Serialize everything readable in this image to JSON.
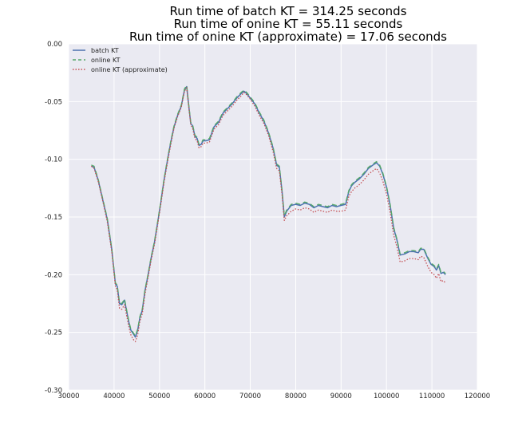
{
  "chart_data": {
    "type": "line",
    "title_lines": [
      "Run time of batch KT = 314.25 seconds",
      "Run time of onine KT = 55.11 seconds",
      "Run time of onine KT (approximate) = 17.06 seconds"
    ],
    "xlabel": "",
    "ylabel": "",
    "xlim": [
      30000,
      120000
    ],
    "ylim": [
      -0.3,
      0.0
    ],
    "x_ticks": [
      30000,
      40000,
      50000,
      60000,
      70000,
      80000,
      90000,
      100000,
      110000,
      120000
    ],
    "x_tick_labels": [
      "30000",
      "40000",
      "50000",
      "60000",
      "70000",
      "80000",
      "90000",
      "100000",
      "110000",
      "120000"
    ],
    "y_ticks": [
      0.0,
      -0.05,
      -0.1,
      -0.15,
      -0.2,
      -0.25,
      -0.3
    ],
    "y_tick_labels": [
      "0.00",
      "-0.05",
      "-0.10",
      "-0.15",
      "-0.20",
      "-0.25",
      "-0.30"
    ],
    "grid": true,
    "legend_position": "top-left",
    "background": "#eaeaf2",
    "series": [
      {
        "name": "batch KT",
        "style": "solid",
        "color": "#4c72b0",
        "x": [
          35000,
          35600,
          36500,
          37500,
          38500,
          39500,
          40300,
          40700,
          41200,
          41700,
          42300,
          42800,
          43300,
          43700,
          44200,
          44700,
          45200,
          45700,
          46200,
          46800,
          47500,
          48200,
          48900,
          49600,
          50300,
          51000,
          51800,
          52500,
          53200,
          54000,
          54800,
          55500,
          56000,
          56400,
          56900,
          57300,
          57800,
          58300,
          58700,
          59200,
          59600,
          60200,
          61000,
          62000,
          63000,
          64000,
          65000,
          66000,
          67000,
          68000,
          68600,
          69200,
          70000,
          71000,
          72000,
          73000,
          74000,
          75000,
          75800,
          76400,
          77000,
          77500,
          78000,
          79000,
          80000,
          81000,
          82000,
          83000,
          84000,
          85000,
          86000,
          87000,
          88000,
          89000,
          90000,
          91000,
          91700,
          92300,
          93000,
          94000,
          95000,
          96000,
          97000,
          97800,
          98500,
          99200,
          100000,
          100800,
          101600,
          102300,
          103000,
          104000,
          105000,
          106000,
          107000,
          107500,
          108200,
          109000,
          109800,
          110500,
          111000,
          111500,
          112000,
          112500,
          113000
        ],
        "y": [
          -0.106,
          -0.107,
          -0.118,
          -0.135,
          -0.152,
          -0.178,
          -0.208,
          -0.21,
          -0.225,
          -0.226,
          -0.222,
          -0.232,
          -0.242,
          -0.248,
          -0.251,
          -0.254,
          -0.248,
          -0.237,
          -0.231,
          -0.214,
          -0.2,
          -0.185,
          -0.172,
          -0.155,
          -0.137,
          -0.118,
          -0.1,
          -0.085,
          -0.072,
          -0.062,
          -0.054,
          -0.04,
          -0.037,
          -0.052,
          -0.069,
          -0.071,
          -0.08,
          -0.082,
          -0.088,
          -0.087,
          -0.084,
          -0.084,
          -0.083,
          -0.072,
          -0.068,
          -0.06,
          -0.056,
          -0.052,
          -0.047,
          -0.043,
          -0.041,
          -0.043,
          -0.047,
          -0.052,
          -0.06,
          -0.067,
          -0.077,
          -0.09,
          -0.105,
          -0.107,
          -0.128,
          -0.15,
          -0.145,
          -0.14,
          -0.139,
          -0.14,
          -0.138,
          -0.139,
          -0.142,
          -0.14,
          -0.141,
          -0.142,
          -0.14,
          -0.141,
          -0.14,
          -0.139,
          -0.128,
          -0.123,
          -0.12,
          -0.117,
          -0.113,
          -0.108,
          -0.105,
          -0.103,
          -0.106,
          -0.113,
          -0.124,
          -0.14,
          -0.16,
          -0.17,
          -0.183,
          -0.182,
          -0.18,
          -0.18,
          -0.181,
          -0.178,
          -0.178,
          -0.185,
          -0.191,
          -0.193,
          -0.196,
          -0.192,
          -0.199,
          -0.198,
          -0.2
        ]
      },
      {
        "name": "online KT",
        "style": "dashed",
        "color": "#55a868",
        "x": [
          35000,
          35600,
          36500,
          37500,
          38500,
          39500,
          40300,
          40700,
          41200,
          41700,
          42300,
          42800,
          43300,
          43700,
          44200,
          44700,
          45200,
          45700,
          46200,
          46800,
          47500,
          48200,
          48900,
          49600,
          50300,
          51000,
          51800,
          52500,
          53200,
          54000,
          54800,
          55500,
          56000,
          56400,
          56900,
          57300,
          57800,
          58300,
          58700,
          59200,
          59600,
          60200,
          61000,
          62000,
          63000,
          64000,
          65000,
          66000,
          67000,
          68000,
          68600,
          69200,
          70000,
          71000,
          72000,
          73000,
          74000,
          75000,
          75800,
          76400,
          77000,
          77500,
          78000,
          79000,
          80000,
          81000,
          82000,
          83000,
          84000,
          85000,
          86000,
          87000,
          88000,
          89000,
          90000,
          91000,
          91700,
          92300,
          93000,
          94000,
          95000,
          96000,
          97000,
          97800,
          98500,
          99200,
          100000,
          100800,
          101600,
          102300,
          103000,
          104000,
          105000,
          106000,
          107000,
          107500,
          108200,
          109000,
          109800,
          110500,
          111000,
          111500,
          112000,
          112500,
          113000
        ],
        "y": [
          -0.105,
          -0.106,
          -0.117,
          -0.134,
          -0.151,
          -0.177,
          -0.207,
          -0.209,
          -0.224,
          -0.225,
          -0.221,
          -0.231,
          -0.241,
          -0.247,
          -0.25,
          -0.253,
          -0.247,
          -0.236,
          -0.23,
          -0.213,
          -0.199,
          -0.184,
          -0.171,
          -0.154,
          -0.136,
          -0.117,
          -0.099,
          -0.084,
          -0.071,
          -0.061,
          -0.053,
          -0.039,
          -0.036,
          -0.051,
          -0.068,
          -0.07,
          -0.079,
          -0.081,
          -0.087,
          -0.086,
          -0.083,
          -0.083,
          -0.082,
          -0.071,
          -0.067,
          -0.059,
          -0.055,
          -0.051,
          -0.046,
          -0.042,
          -0.04,
          -0.042,
          -0.046,
          -0.051,
          -0.059,
          -0.066,
          -0.076,
          -0.089,
          -0.104,
          -0.106,
          -0.127,
          -0.149,
          -0.144,
          -0.139,
          -0.138,
          -0.139,
          -0.137,
          -0.138,
          -0.141,
          -0.139,
          -0.14,
          -0.141,
          -0.139,
          -0.14,
          -0.139,
          -0.138,
          -0.127,
          -0.122,
          -0.119,
          -0.116,
          -0.112,
          -0.107,
          -0.104,
          -0.102,
          -0.105,
          -0.112,
          -0.123,
          -0.139,
          -0.159,
          -0.169,
          -0.182,
          -0.181,
          -0.179,
          -0.179,
          -0.18,
          -0.177,
          -0.177,
          -0.184,
          -0.19,
          -0.192,
          -0.195,
          -0.191,
          -0.198,
          -0.197,
          -0.199
        ]
      },
      {
        "name": "online KT (approximate)",
        "style": "dotted",
        "color": "#c44e52",
        "x": [
          35000,
          35600,
          36500,
          37500,
          38500,
          39500,
          40300,
          40700,
          41200,
          41700,
          42300,
          42800,
          43300,
          43700,
          44200,
          44700,
          45200,
          45700,
          46200,
          46800,
          47500,
          48200,
          48900,
          49600,
          50300,
          51000,
          51800,
          52500,
          53200,
          54000,
          54800,
          55500,
          56000,
          56400,
          56900,
          57300,
          57800,
          58300,
          58700,
          59200,
          59600,
          60200,
          61000,
          62000,
          63000,
          64000,
          65000,
          66000,
          67000,
          68000,
          68600,
          69200,
          70000,
          71000,
          72000,
          73000,
          74000,
          75000,
          75800,
          76400,
          77000,
          77500,
          78000,
          79000,
          80000,
          81000,
          82000,
          83000,
          84000,
          85000,
          86000,
          87000,
          88000,
          89000,
          90000,
          91000,
          91700,
          92300,
          93000,
          94000,
          95000,
          96000,
          97000,
          97800,
          98500,
          99200,
          100000,
          100800,
          101600,
          102300,
          103000,
          104000,
          105000,
          106000,
          107000,
          107500,
          108200,
          109000,
          109800,
          110500,
          111000,
          111500,
          112000,
          112500,
          113000
        ],
        "y": [
          -0.106,
          -0.108,
          -0.119,
          -0.136,
          -0.154,
          -0.18,
          -0.21,
          -0.213,
          -0.229,
          -0.23,
          -0.226,
          -0.236,
          -0.246,
          -0.252,
          -0.256,
          -0.258,
          -0.252,
          -0.24,
          -0.234,
          -0.217,
          -0.202,
          -0.187,
          -0.174,
          -0.157,
          -0.139,
          -0.12,
          -0.102,
          -0.087,
          -0.073,
          -0.063,
          -0.055,
          -0.041,
          -0.038,
          -0.053,
          -0.07,
          -0.073,
          -0.082,
          -0.084,
          -0.09,
          -0.089,
          -0.086,
          -0.086,
          -0.085,
          -0.074,
          -0.07,
          -0.062,
          -0.058,
          -0.054,
          -0.049,
          -0.045,
          -0.042,
          -0.044,
          -0.048,
          -0.054,
          -0.062,
          -0.069,
          -0.079,
          -0.093,
          -0.108,
          -0.11,
          -0.131,
          -0.153,
          -0.149,
          -0.145,
          -0.143,
          -0.144,
          -0.142,
          -0.143,
          -0.146,
          -0.144,
          -0.145,
          -0.146,
          -0.144,
          -0.145,
          -0.145,
          -0.144,
          -0.132,
          -0.128,
          -0.125,
          -0.122,
          -0.118,
          -0.113,
          -0.11,
          -0.108,
          -0.112,
          -0.119,
          -0.13,
          -0.146,
          -0.166,
          -0.176,
          -0.189,
          -0.188,
          -0.186,
          -0.186,
          -0.187,
          -0.184,
          -0.185,
          -0.192,
          -0.198,
          -0.2,
          -0.203,
          -0.199,
          -0.206,
          -0.205,
          -0.207
        ]
      }
    ]
  }
}
